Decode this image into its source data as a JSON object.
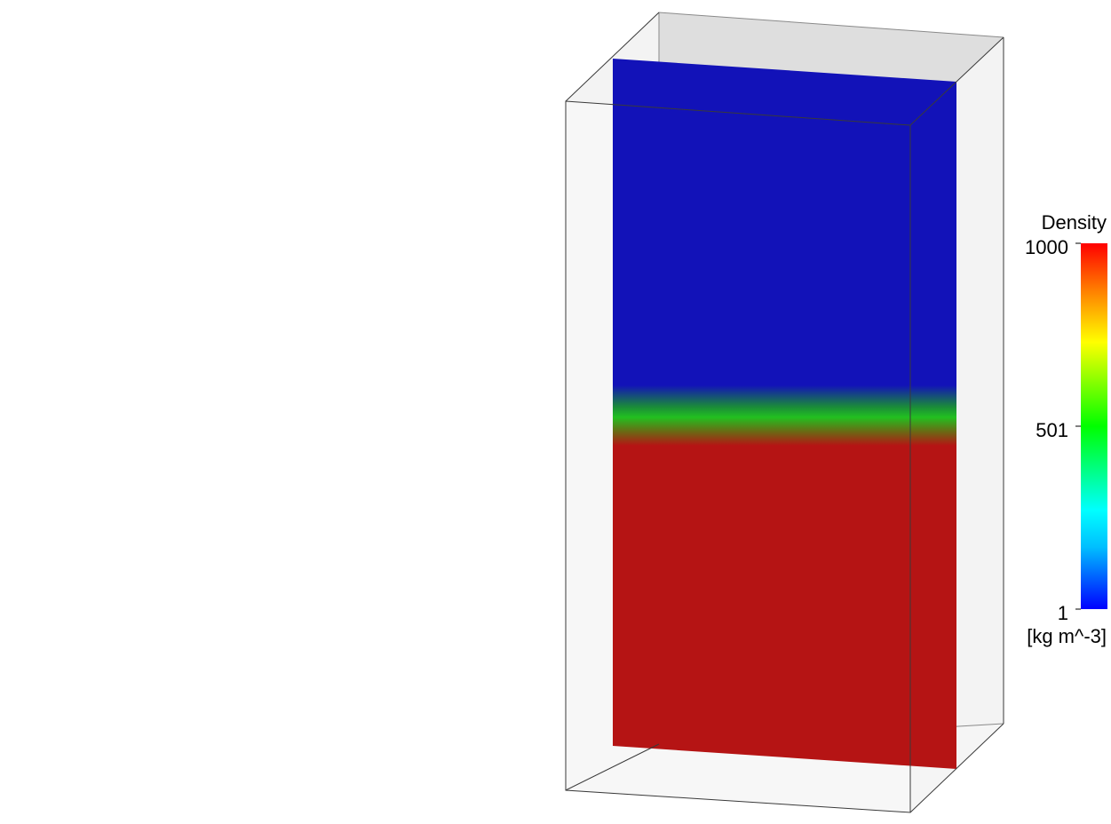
{
  "legend": {
    "title": "Density",
    "ticks": [
      {
        "label": "1000",
        "value": 1000
      },
      {
        "label": "501",
        "value": 501
      },
      {
        "label": "1",
        "value": 1
      }
    ],
    "units": "[kg m^-3]",
    "min": 1,
    "max": 1000,
    "colormap": [
      "#0000ff",
      "#00bfff",
      "#00ffff",
      "#00ff00",
      "#ffff00",
      "#ff8000",
      "#ff0000"
    ]
  },
  "contour_plane": {
    "upper_fluid_color": "#1212b8",
    "lower_fluid_color": "#b51414",
    "interface_color": "#20b020"
  },
  "domain_box": {
    "edge_color": "#000000",
    "face_color": "#efefef"
  }
}
